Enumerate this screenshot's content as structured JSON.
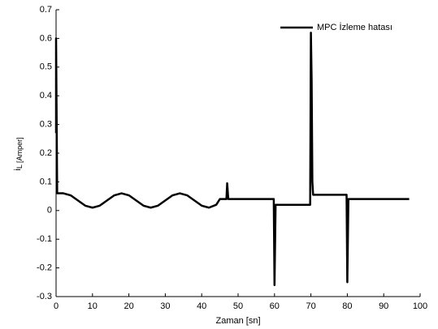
{
  "chart_data": {
    "type": "line",
    "xlabel": "Zaman [sn]",
    "ylabel": "i",
    "ylabel_subscript": "L [Amper]",
    "xlim": [
      0,
      100
    ],
    "ylim": [
      -0.3,
      0.7
    ],
    "xticks": [
      0,
      10,
      20,
      30,
      40,
      50,
      60,
      70,
      80,
      90,
      100
    ],
    "yticks": [
      -0.3,
      -0.2,
      -0.1,
      0,
      0.1,
      0.2,
      0.3,
      0.4,
      0.5,
      0.6,
      0.7
    ],
    "legend": "upper right",
    "series": [
      {
        "name": "MPC İzleme hatası",
        "color": "#000000",
        "x": [
          0,
          0,
          0.3,
          2,
          4,
          6,
          8,
          10,
          12,
          14,
          16,
          18,
          20,
          22,
          24,
          26,
          28,
          30,
          32,
          34,
          36,
          38,
          40,
          42,
          44,
          45,
          46.8,
          47,
          47.3,
          59.8,
          60,
          60.3,
          69.8,
          70,
          70.2,
          70.4,
          70.6,
          79.8,
          80,
          80.3,
          97
        ],
        "values": [
          0.27,
          0.6,
          0.06,
          0.06,
          0.053,
          0.035,
          0.017,
          0.01,
          0.017,
          0.035,
          0.053,
          0.06,
          0.053,
          0.035,
          0.017,
          0.01,
          0.017,
          0.035,
          0.053,
          0.06,
          0.053,
          0.035,
          0.017,
          0.01,
          0.02,
          0.04,
          0.04,
          0.095,
          0.04,
          0.04,
          -0.26,
          0.02,
          0.02,
          0.62,
          0.45,
          0.1,
          0.055,
          0.055,
          -0.25,
          0.04,
          0.04
        ]
      }
    ]
  }
}
